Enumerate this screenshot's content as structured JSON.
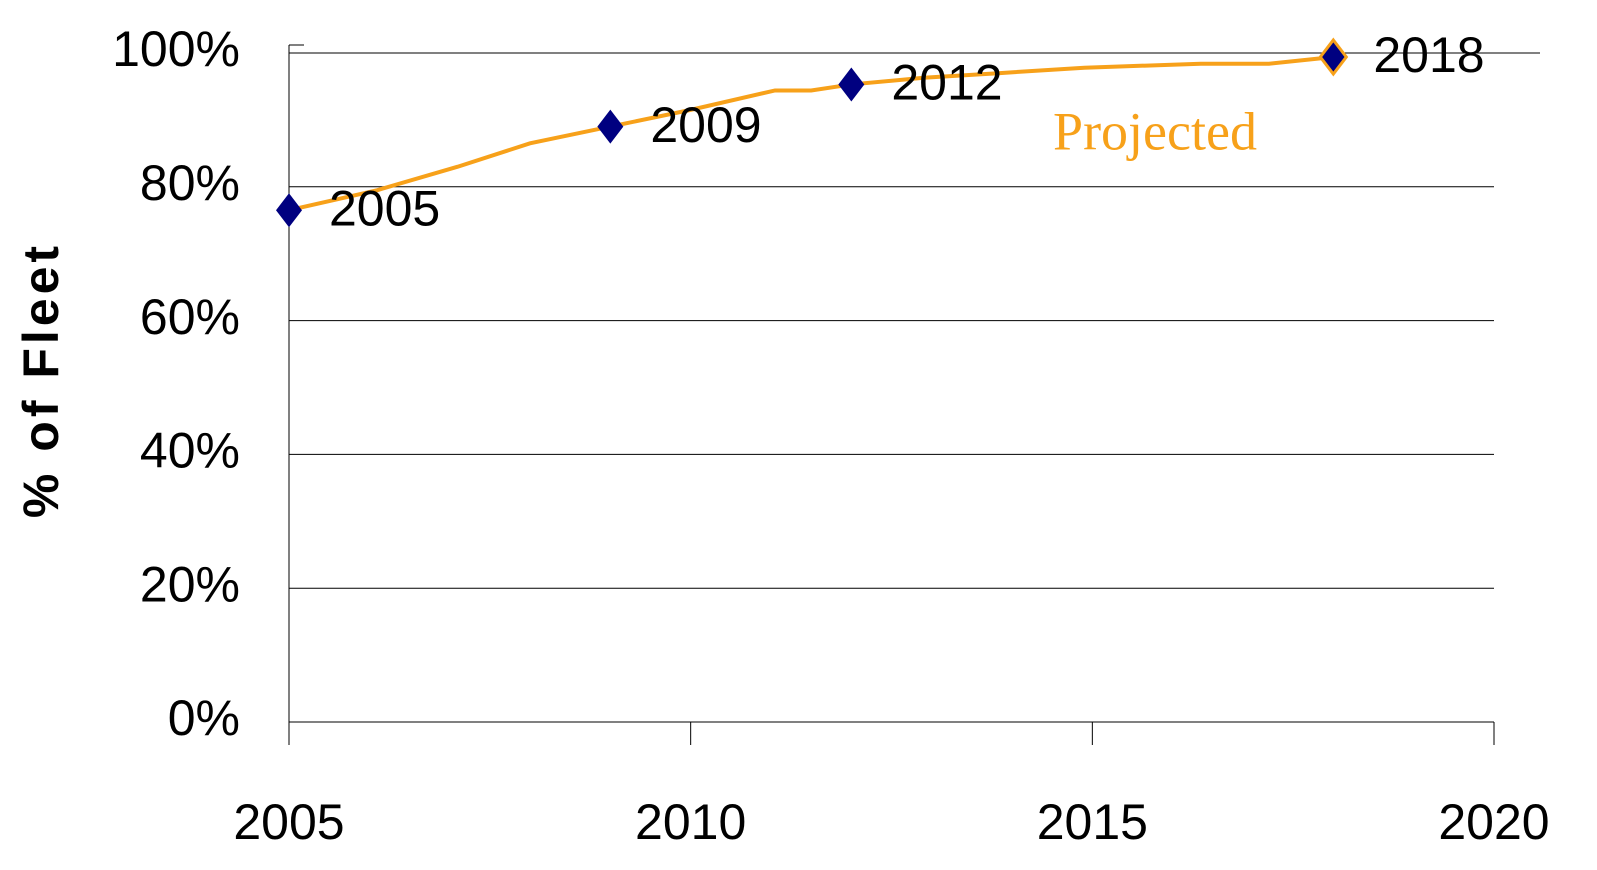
{
  "chart_data": {
    "type": "line",
    "y_label": "% of Fleet",
    "annotation": "Projected",
    "xlim": [
      2005,
      2020
    ],
    "xticks": [
      2005,
      2010,
      2015,
      2020
    ],
    "ylim": [
      0,
      100
    ],
    "yticks": [
      {
        "value": 0,
        "label": "0%"
      },
      {
        "value": 20,
        "label": "20%"
      },
      {
        "value": 40,
        "label": "40%"
      },
      {
        "value": 60,
        "label": "60%"
      },
      {
        "value": 80,
        "label": "80%"
      },
      {
        "value": 100,
        "label": "100%"
      }
    ],
    "grid": true,
    "line": {
      "color": "#f7a11a",
      "x": [
        2005,
        2006.1,
        2007.1,
        2008,
        2009,
        2010,
        2011.05,
        2011.5,
        2012,
        2012.9,
        2013.85,
        2014.9,
        2016.35,
        2017.2,
        2018
      ],
      "values": [
        76.5,
        79.5,
        83,
        86.5,
        89,
        91.5,
        94.4,
        94.4,
        95.3,
        96.3,
        97,
        97.8,
        98.4,
        98.4,
        99.4
      ]
    },
    "points": {
      "color": "#000080",
      "x": [
        2005,
        2009,
        2012,
        2018
      ],
      "values": [
        76.5,
        89,
        95.3,
        99.4
      ],
      "labels": [
        "2005",
        "2009",
        "2012",
        "2018"
      ]
    }
  }
}
